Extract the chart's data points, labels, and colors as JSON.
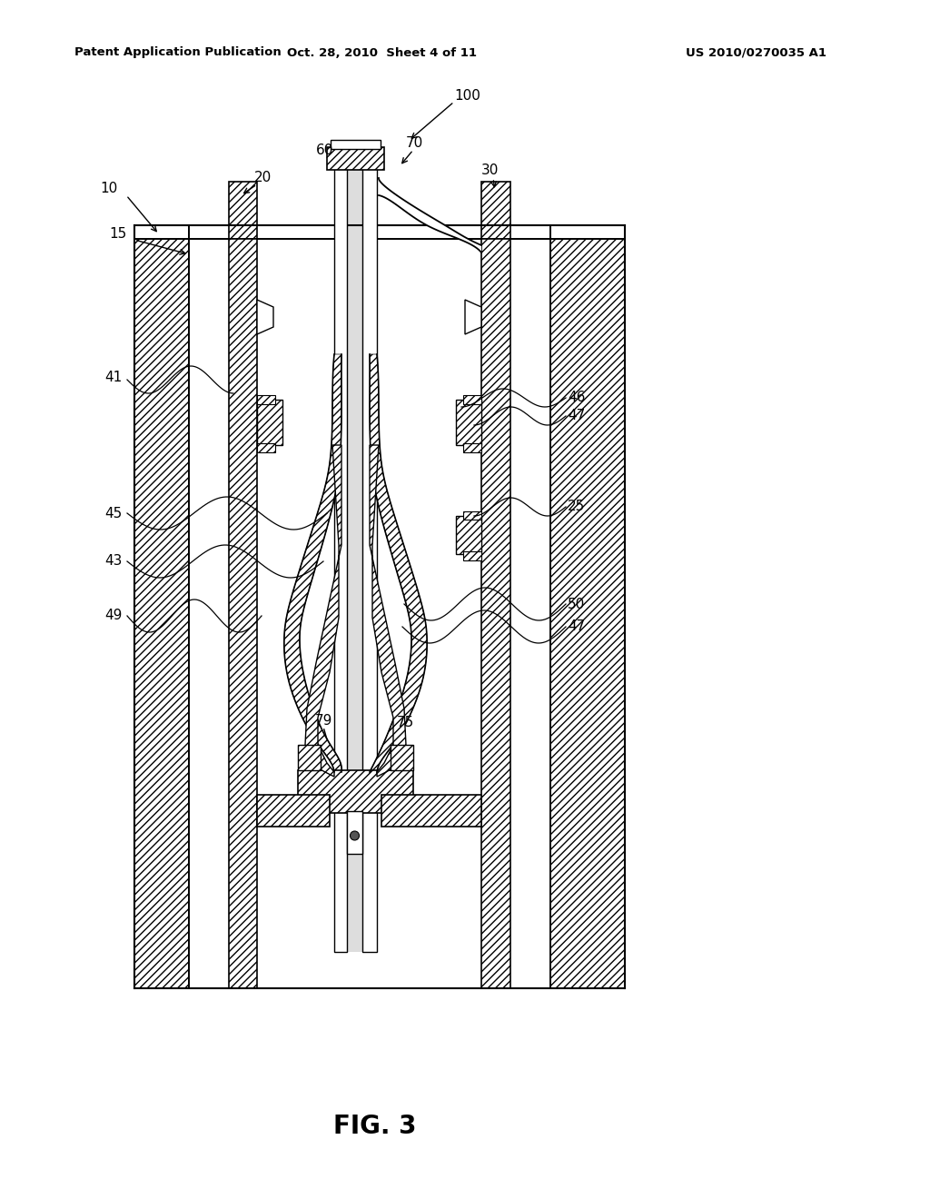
{
  "bg_color": "#ffffff",
  "header_left": "Patent Application Publication",
  "header_center": "Oct. 28, 2010  Sheet 4 of 11",
  "header_right": "US 2010/0270035 A1",
  "fig_title": "FIG. 3",
  "hatch_dense": "////",
  "hatch_x": "xxxx"
}
